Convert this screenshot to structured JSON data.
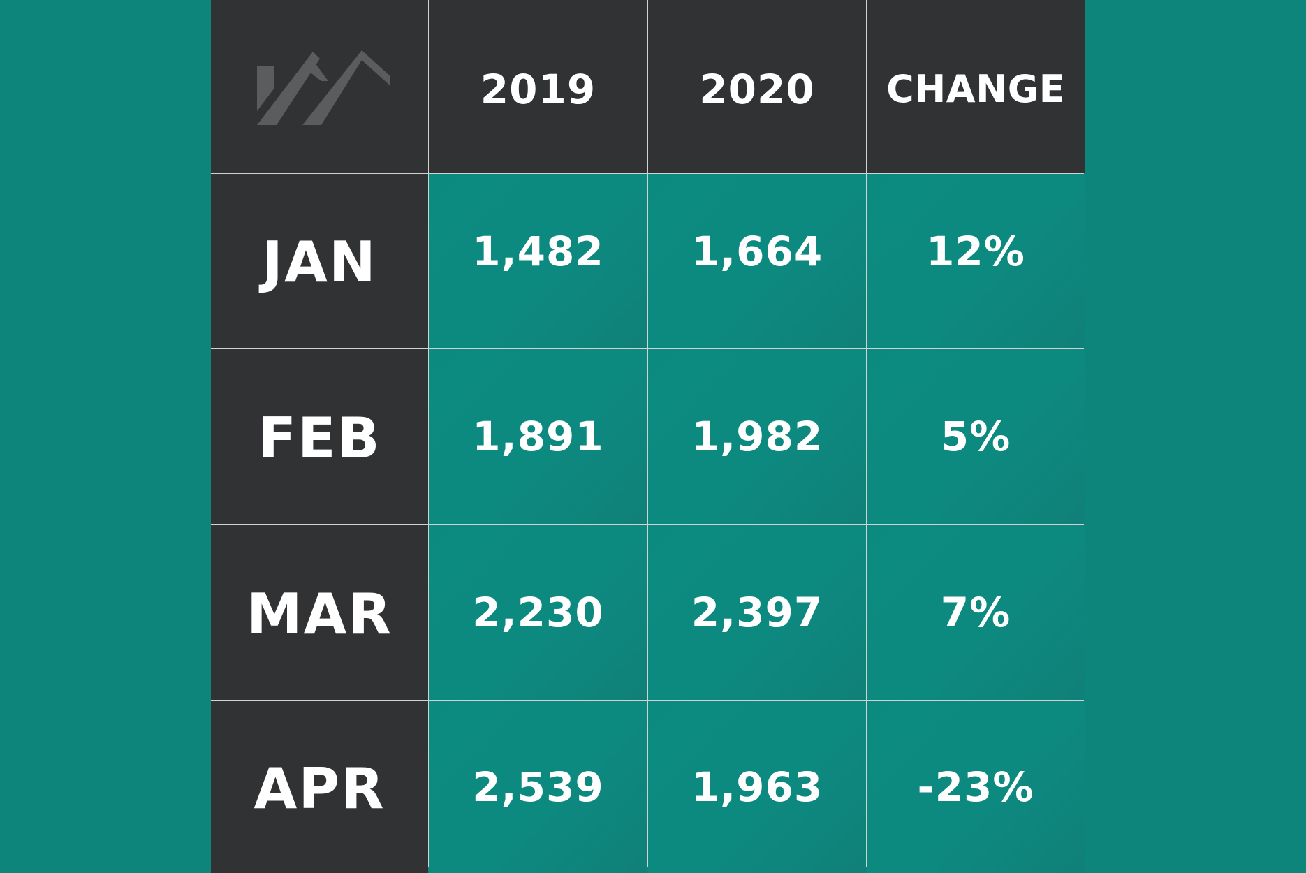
{
  "brand": {
    "logo_icon": "rooftops-logo-icon",
    "colors": {
      "background": "#0e857b",
      "header_cell": "#313234",
      "data_cell": "#0b8b80",
      "text": "#ffffff",
      "grid_line": "#cfd3d2"
    }
  },
  "table": {
    "columns": [
      "2019",
      "2020",
      "CHANGE"
    ],
    "rows": [
      {
        "label": "JAN",
        "values": [
          "1,482",
          "1,664",
          "12%"
        ]
      },
      {
        "label": "FEB",
        "values": [
          "1,891",
          "1,982",
          "5%"
        ]
      },
      {
        "label": "MAR",
        "values": [
          "2,230",
          "2,397",
          "7%"
        ]
      },
      {
        "label": "APR",
        "values": [
          "2,539",
          "1,963",
          "-23%"
        ]
      }
    ]
  },
  "chart_data": {
    "type": "table",
    "title": "",
    "columns": [
      "2019",
      "2020",
      "CHANGE"
    ],
    "row_labels": [
      "JAN",
      "FEB",
      "MAR",
      "APR"
    ],
    "cells": [
      [
        "1,482",
        "1,664",
        "12%"
      ],
      [
        "1,891",
        "1,982",
        "5%"
      ],
      [
        "2,230",
        "2,397",
        "7%"
      ],
      [
        "2,539",
        "1,963",
        "-23%"
      ]
    ],
    "series": [
      {
        "name": "2019",
        "values": [
          1482,
          1891,
          2230,
          2539
        ]
      },
      {
        "name": "2020",
        "values": [
          1664,
          1982,
          2397,
          1963
        ]
      },
      {
        "name": "CHANGE",
        "values": [
          12,
          5,
          7,
          -23
        ]
      }
    ]
  }
}
